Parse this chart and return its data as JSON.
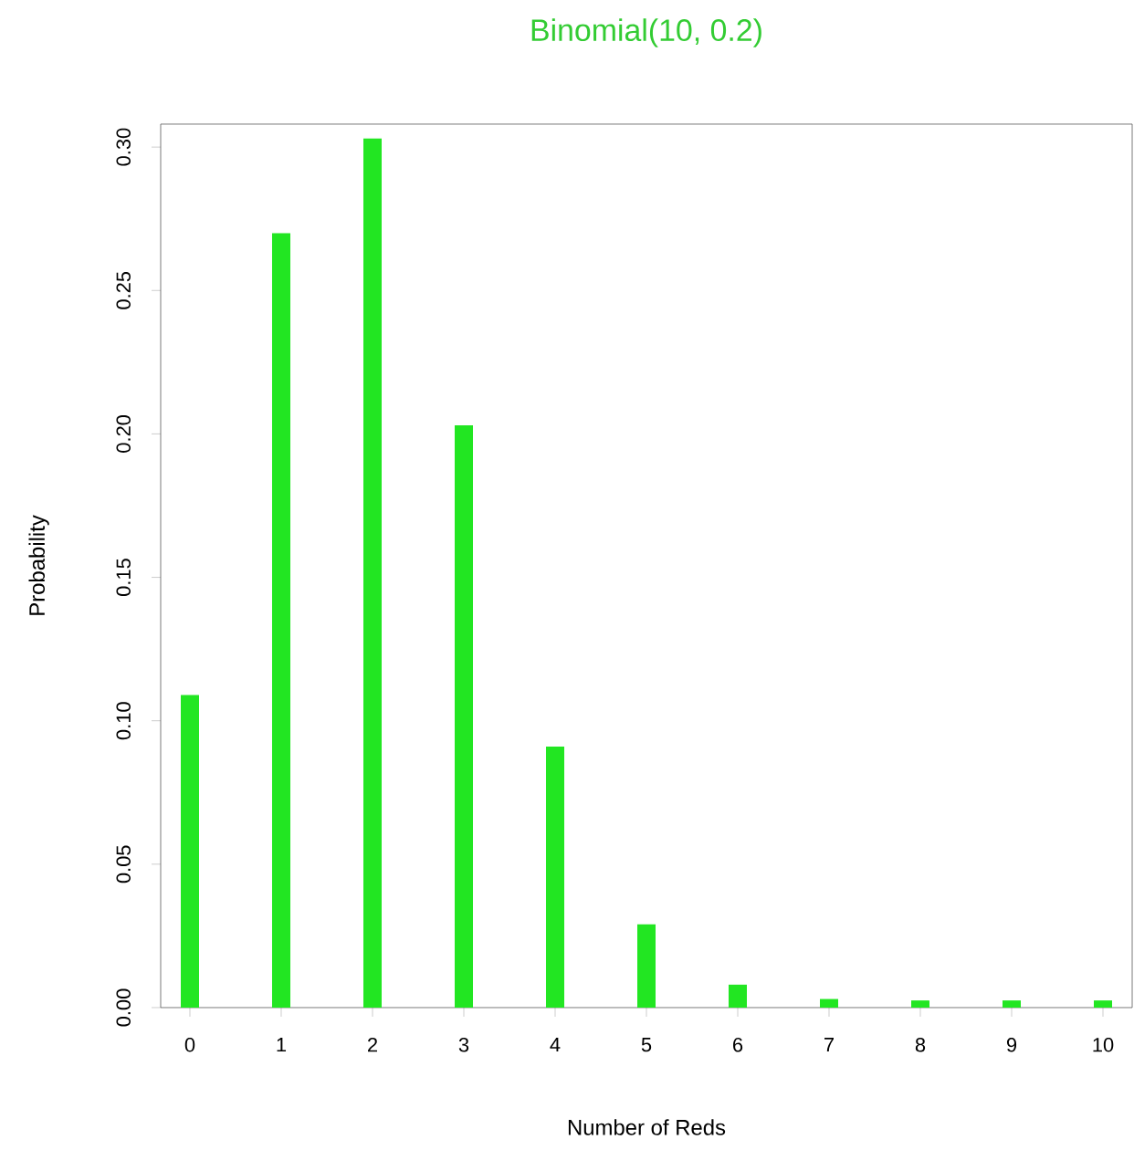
{
  "chart_data": {
    "type": "bar",
    "title": "Binomial(10, 0.2)",
    "xlabel": "Number of Reds",
    "ylabel": "Probability",
    "categories": [
      "0",
      "1",
      "2",
      "3",
      "4",
      "5",
      "6",
      "7",
      "8",
      "9",
      "10"
    ],
    "values": [
      0.109,
      0.27,
      0.303,
      0.203,
      0.091,
      0.029,
      0.008,
      0.003,
      0.0025,
      0.0025,
      0.0025
    ],
    "color": "#22e622",
    "ylim": [
      0,
      0.308
    ],
    "yticks": [
      {
        "value": 0,
        "label": "0.00"
      },
      {
        "value": 0.05,
        "label": "0.05"
      },
      {
        "value": 0.1,
        "label": "0.10"
      },
      {
        "value": 0.15,
        "label": "0.15"
      },
      {
        "value": 0.2,
        "label": "0.20"
      },
      {
        "value": 0.25,
        "label": "0.25"
      },
      {
        "value": 0.3,
        "label": "0.30"
      }
    ],
    "grid": false
  }
}
